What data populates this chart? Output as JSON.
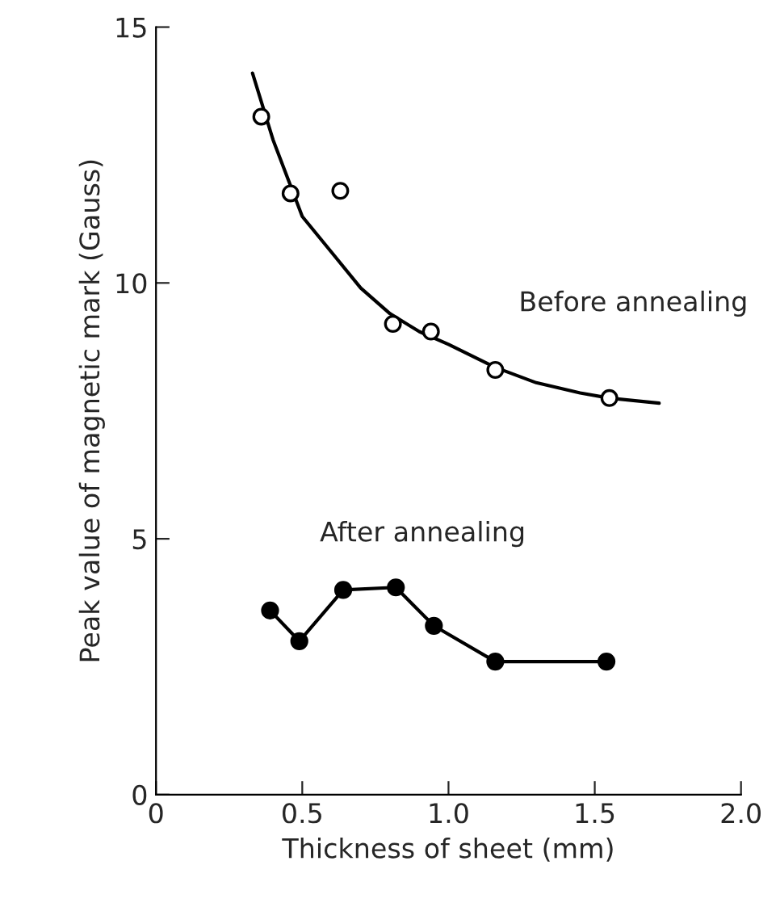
{
  "chart_data": {
    "type": "scatter",
    "xlabel": "Thickness of sheet (mm)",
    "ylabel": "Peak value of magnetic mark (Gauss)",
    "xlim": [
      0,
      2.0
    ],
    "ylim": [
      0,
      15
    ],
    "xticks": [
      0,
      0.5,
      {
        "value": 1.0,
        "label": "1.0"
      },
      1.5,
      {
        "value": 2.0,
        "label": "2.0"
      }
    ],
    "yticks": [
      0,
      5,
      10,
      15
    ],
    "grid": false,
    "legend": false,
    "series": [
      {
        "name": "Before annealing",
        "marker": "circle",
        "color": "#000000",
        "x": [
          0.36,
          0.46,
          0.63,
          0.81,
          0.94,
          1.16,
          1.55
        ],
        "values": [
          13.25,
          11.75,
          11.8,
          9.2,
          9.05,
          8.3,
          7.75
        ]
      },
      {
        "type": "line",
        "marker": "none",
        "color": "#000000",
        "x": [
          0.33,
          0.4,
          0.5,
          0.6,
          0.7,
          0.8,
          0.9,
          1.0,
          1.16,
          1.3,
          1.45,
          1.55,
          1.72
        ],
        "values": [
          14.1,
          12.8,
          11.3,
          10.6,
          9.9,
          9.4,
          9.05,
          8.8,
          8.35,
          8.05,
          7.85,
          7.75,
          7.65
        ]
      },
      {
        "name": "After annealing",
        "type": "line",
        "marker": "circle",
        "color": "#000000",
        "x": [
          0.39,
          0.49,
          0.64,
          0.82,
          0.95,
          1.16,
          1.54
        ],
        "values": [
          3.6,
          3.0,
          4.0,
          4.05,
          3.3,
          2.6,
          2.6
        ]
      }
    ]
  }
}
